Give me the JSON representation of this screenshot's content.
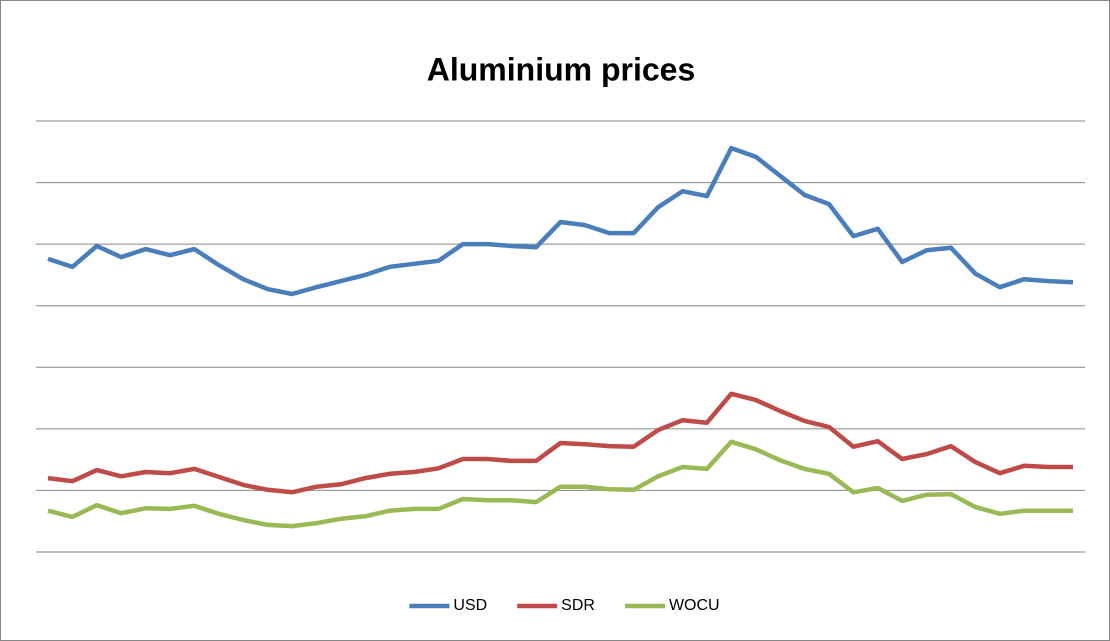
{
  "chart_data": {
    "type": "line",
    "title": "Aluminium prices",
    "categories": [
      null,
      null,
      null,
      null,
      null,
      null,
      null,
      null,
      null,
      null,
      null,
      null,
      null,
      null,
      null,
      null,
      null,
      null,
      null,
      null,
      null,
      null,
      null,
      null,
      null,
      null,
      null,
      null,
      null,
      null,
      null,
      null,
      null,
      null,
      null,
      null,
      null,
      null,
      null,
      null,
      null,
      null,
      null
    ],
    "series": [
      {
        "name": "USD",
        "color": "#4a7ebb",
        "values": [
          4.76,
          4.63,
          4.97,
          4.79,
          4.92,
          4.82,
          4.92,
          4.66,
          4.43,
          4.27,
          4.19,
          4.3,
          4.4,
          4.5,
          4.63,
          4.68,
          4.73,
          5.0,
          5.0,
          4.97,
          4.95,
          5.36,
          5.31,
          5.18,
          5.18,
          5.6,
          5.86,
          5.78,
          6.56,
          6.42,
          6.11,
          5.8,
          5.65,
          5.13,
          5.25,
          4.71,
          4.9,
          4.94,
          4.52,
          4.3,
          4.43,
          4.4,
          4.38
        ]
      },
      {
        "name": "SDR",
        "color": "#be4b48",
        "values": [
          1.2,
          1.15,
          1.33,
          1.23,
          1.3,
          1.28,
          1.35,
          1.22,
          1.09,
          1.01,
          0.97,
          1.06,
          1.1,
          1.2,
          1.27,
          1.3,
          1.36,
          1.51,
          1.51,
          1.48,
          1.48,
          1.77,
          1.75,
          1.72,
          1.71,
          1.98,
          2.14,
          2.1,
          2.57,
          2.47,
          2.29,
          2.13,
          2.03,
          1.71,
          1.8,
          1.51,
          1.59,
          1.72,
          1.46,
          1.28,
          1.4,
          1.38,
          1.38
        ]
      },
      {
        "name": "WOCU",
        "color": "#98b954",
        "values": [
          0.67,
          0.57,
          0.76,
          0.63,
          0.71,
          0.7,
          0.75,
          0.62,
          0.52,
          0.44,
          0.42,
          0.47,
          0.54,
          0.58,
          0.67,
          0.7,
          0.7,
          0.86,
          0.84,
          0.84,
          0.81,
          1.06,
          1.06,
          1.02,
          1.01,
          1.23,
          1.38,
          1.35,
          1.79,
          1.67,
          1.49,
          1.35,
          1.27,
          0.97,
          1.04,
          0.83,
          0.93,
          0.94,
          0.73,
          0.62,
          0.67,
          0.67,
          0.67
        ]
      }
    ],
    "ylim": [
      0,
      7
    ],
    "yticks": [
      0,
      1,
      2,
      3,
      4,
      5,
      6,
      7
    ],
    "grid": true,
    "legend": "bottom"
  }
}
